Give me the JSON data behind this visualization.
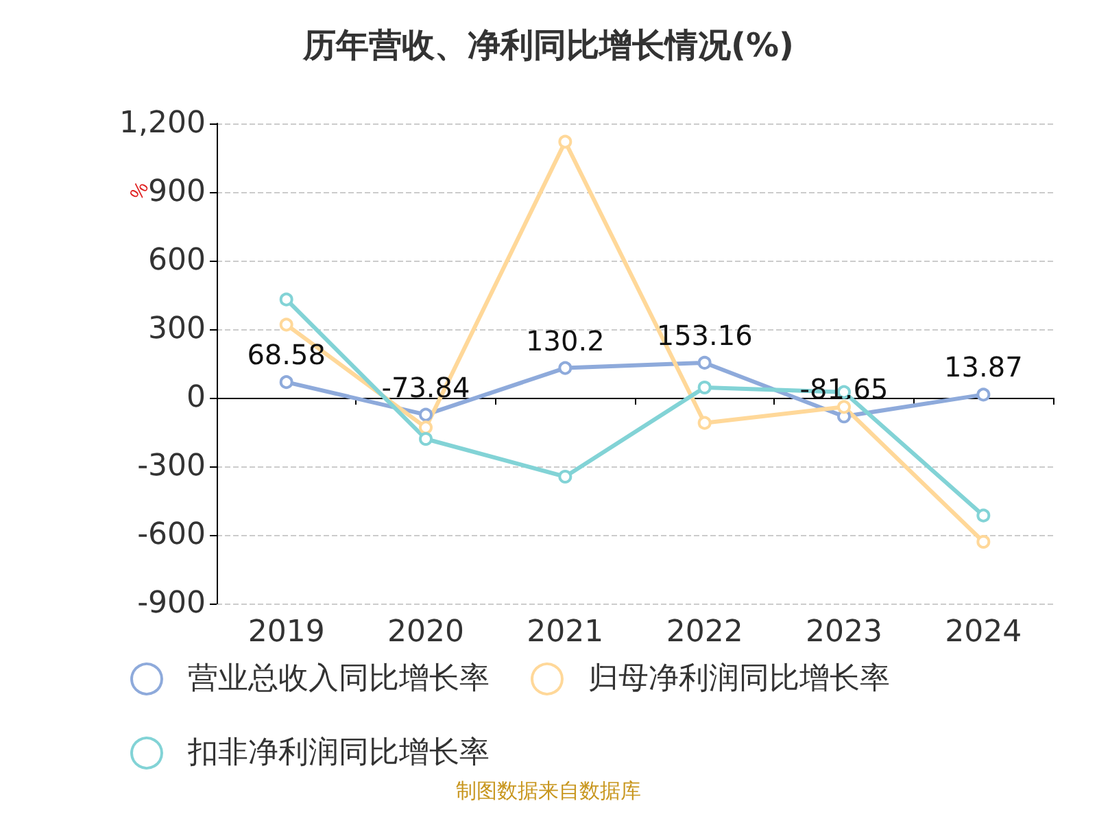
{
  "chart_data": {
    "type": "line",
    "title": "历年营收、净利同比增长情况(%)",
    "ylabel": "%",
    "categories": [
      "2019",
      "2020",
      "2021",
      "2022",
      "2023",
      "2024"
    ],
    "series": [
      {
        "name": "营业总收入同比增长率",
        "color": "#8eaadb",
        "values": [
          68.58,
          -73.84,
          130.2,
          153.16,
          -81.65,
          13.87
        ],
        "value_labels": [
          "68.58",
          "-73.84",
          "130.2",
          "153.16",
          "-81.65",
          "13.87"
        ]
      },
      {
        "name": "归母净利润同比增长率",
        "color": "#ffd899",
        "values": [
          320,
          -130,
          1120,
          -110,
          -40,
          -630
        ]
      },
      {
        "name": "扣非净利润同比增长率",
        "color": "#82d3d6",
        "values": [
          430,
          -180,
          -345,
          45,
          25,
          -515
        ]
      }
    ],
    "ylim": [
      -900,
      1200
    ],
    "yticks": [
      -900,
      -600,
      -300,
      0,
      300,
      600,
      900,
      {
        "value": 1200,
        "label": "1,200"
      }
    ],
    "grid": "y",
    "legend": "bottom",
    "marker": "circle",
    "line_style": "solid",
    "annotations": [
      "制图数据来自数据库"
    ]
  }
}
